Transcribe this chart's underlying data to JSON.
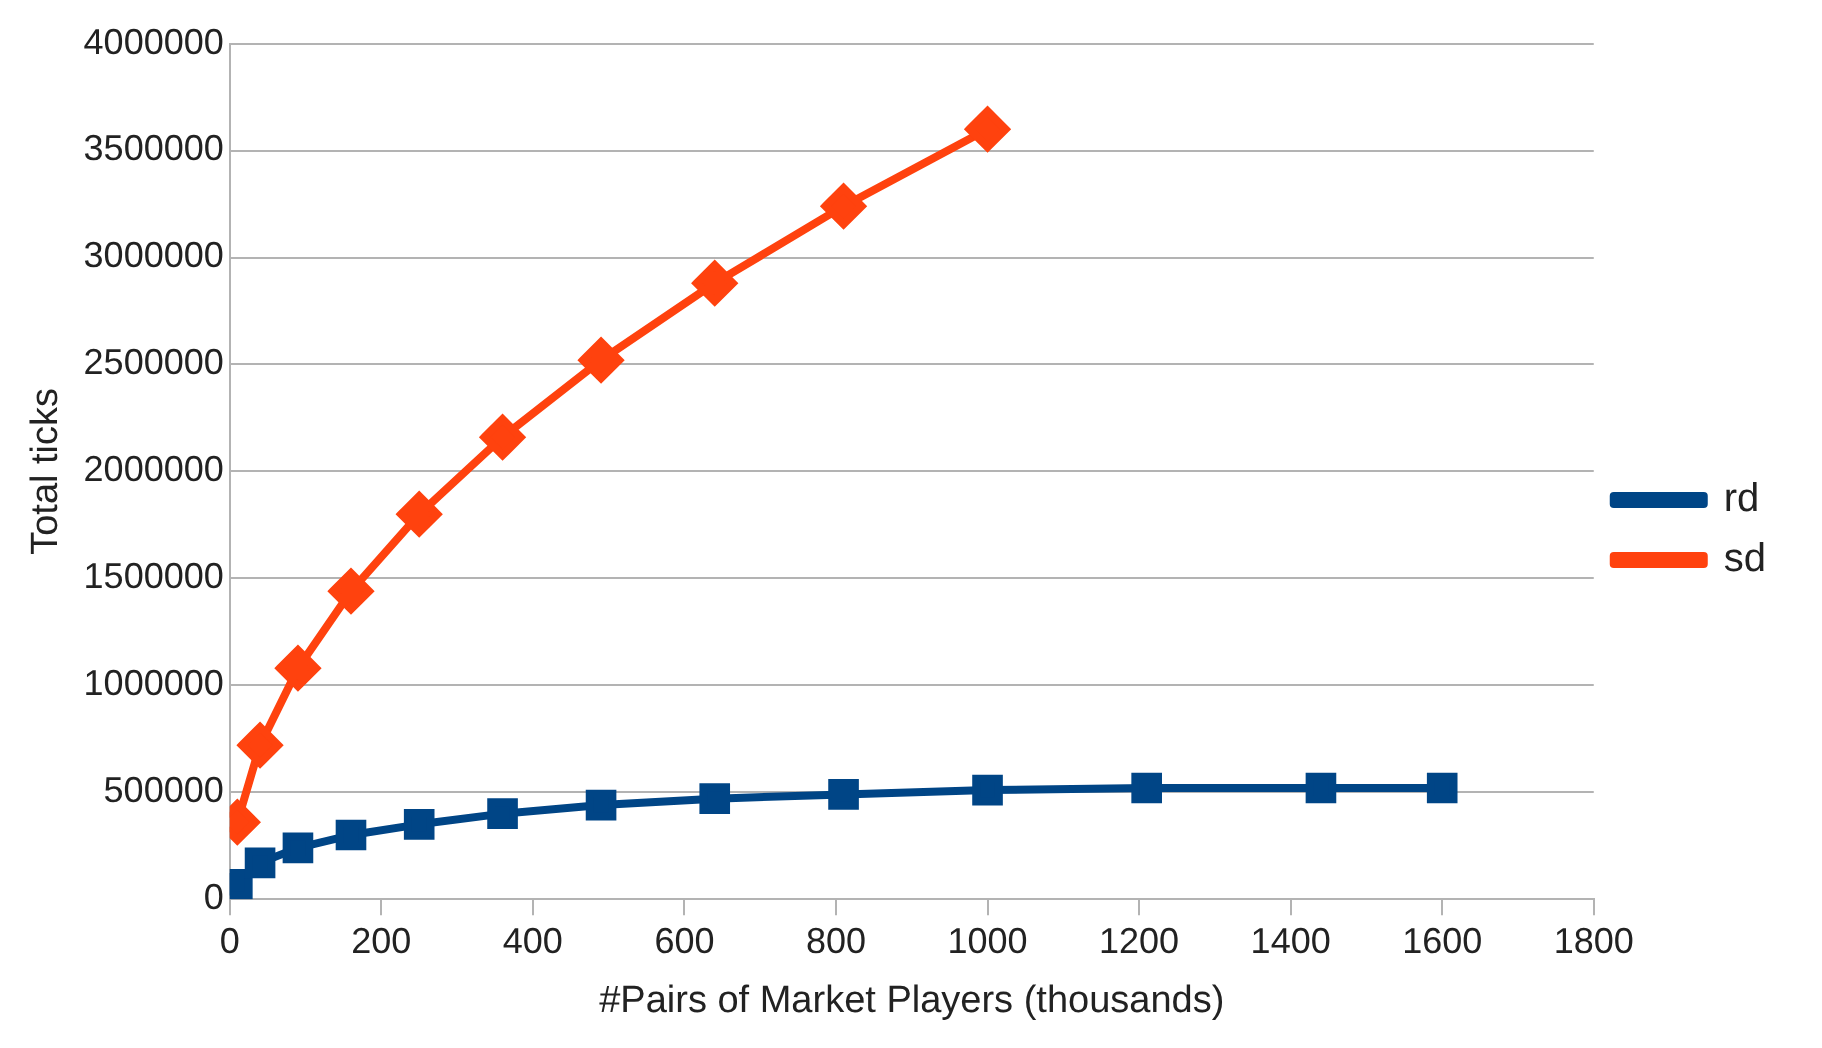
{
  "chart_data": {
    "type": "line",
    "xlabel": "#Pairs of Market Players (thousands)",
    "ylabel": "Total ticks",
    "xlim": [
      0,
      1800
    ],
    "xticks": [
      0,
      200,
      400,
      600,
      800,
      1000,
      1200,
      1400,
      1600,
      1800
    ],
    "ylim": [
      0,
      4000000
    ],
    "yticks": [
      0,
      500000,
      1000000,
      1500000,
      2000000,
      2500000,
      3000000,
      3500000,
      4000000
    ],
    "grid": "y",
    "legend": "right",
    "series": [
      {
        "name": "rd",
        "color": "#004586",
        "marker": "square",
        "x": [
          10,
          40,
          90,
          160,
          250,
          360,
          490,
          640,
          810,
          1000,
          1210,
          1440,
          1600
        ],
        "values": [
          70000,
          170000,
          240000,
          300000,
          350000,
          400000,
          440000,
          470000,
          490000,
          510000,
          520000,
          520000,
          520000
        ]
      },
      {
        "name": "sd",
        "color": "#ff420e",
        "marker": "diamond",
        "x": [
          10,
          40,
          90,
          160,
          250,
          360,
          490,
          640,
          810,
          1000
        ],
        "values": [
          360000,
          720000,
          1080000,
          1440000,
          1800000,
          2160000,
          2520000,
          2880000,
          3240000,
          3600000
        ]
      }
    ]
  }
}
